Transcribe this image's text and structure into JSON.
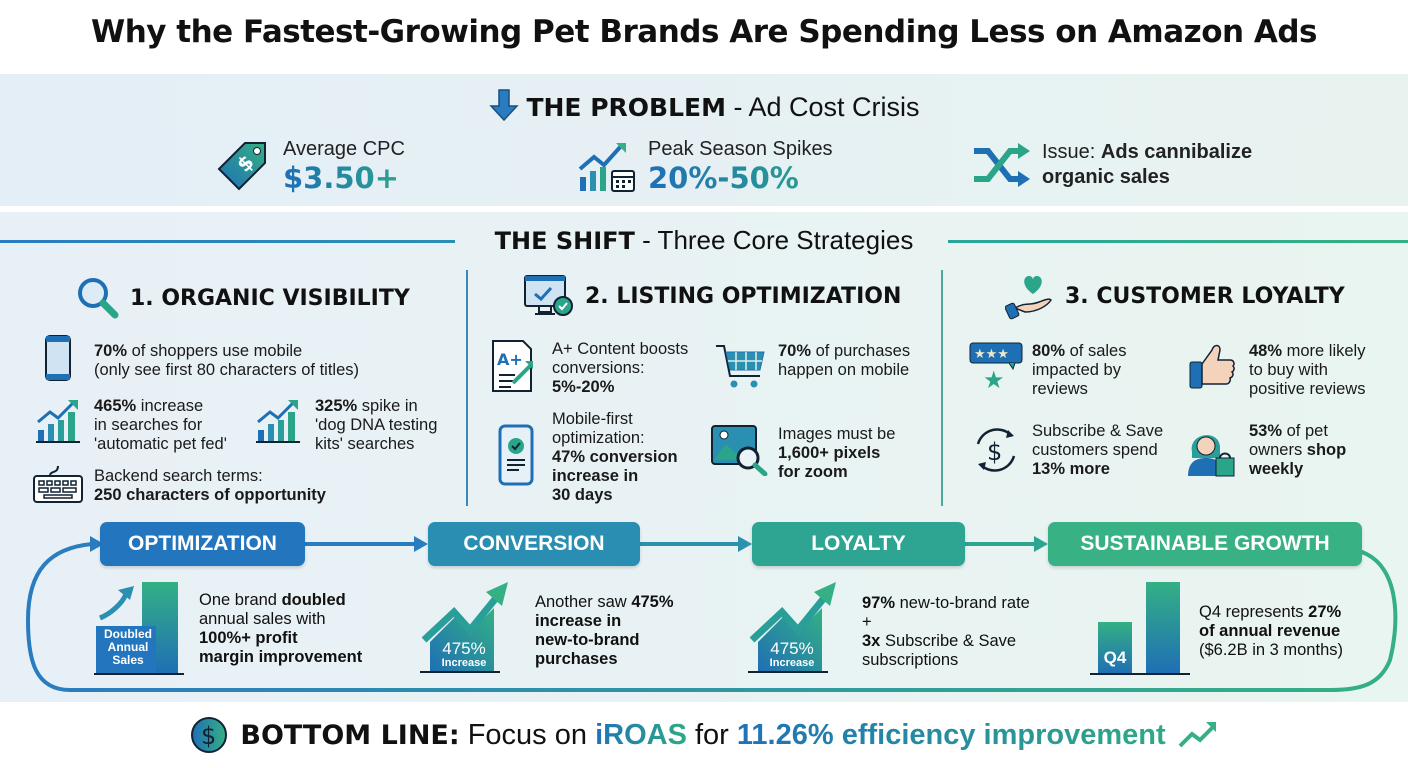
{
  "title": "Why the Fastest-Growing Pet Brands Are Spending Less on Amazon Ads",
  "problem": {
    "heading_bold": "THE PROBLEM",
    "heading_rest": " - Ad Cost Crisis",
    "stats": [
      {
        "label": "Average CPC",
        "value": "$3.50+",
        "icon": "price-tag-icon"
      },
      {
        "label": "Peak Season Spikes",
        "value": "20%-50%",
        "icon": "chart-calendar-icon"
      },
      {
        "label_prefix": "Issue: ",
        "label_bold": "Ads cannibalize",
        "label_bold2": "organic sales",
        "icon": "shuffle-arrows-icon"
      }
    ]
  },
  "shift": {
    "heading_bold": "THE SHIFT",
    "heading_rest": " - Three Core Strategies",
    "columns": [
      {
        "title": "1. ORGANIC VISIBILITY",
        "items": [
          [
            {
              "t": "70%",
              "b": true
            },
            {
              "t": " of shoppers use mobile"
            },
            {
              "br": true
            },
            {
              "t": "(only see first 80 characters of titles)"
            }
          ],
          [
            {
              "t": "465%",
              "b": true
            },
            {
              "t": " increase"
            },
            {
              "br": true
            },
            {
              "t": "in searches for"
            },
            {
              "br": true
            },
            {
              "t": "'automatic pet fed'"
            }
          ],
          [
            {
              "t": "325%",
              "b": true
            },
            {
              "t": " spike in"
            },
            {
              "br": true
            },
            {
              "t": "'dog DNA testing"
            },
            {
              "br": true
            },
            {
              "t": "kits' searches"
            }
          ],
          [
            {
              "t": "Backend search terms:"
            },
            {
              "br": true
            },
            {
              "t": "250 characters of opportunity",
              "b": true
            }
          ]
        ]
      },
      {
        "title": "2. LISTING OPTIMIZATION",
        "items": [
          [
            {
              "t": "A+ Content boosts"
            },
            {
              "br": true
            },
            {
              "t": "conversions:"
            },
            {
              "br": true
            },
            {
              "t": "5%-20%",
              "b": true
            }
          ],
          [
            {
              "t": "70%",
              "b": true
            },
            {
              "t": " of purchases"
            },
            {
              "br": true
            },
            {
              "t": "happen on mobile"
            }
          ],
          [
            {
              "t": "Mobile-first"
            },
            {
              "br": true
            },
            {
              "t": "optimization:"
            },
            {
              "br": true
            },
            {
              "t": "47% conversion",
              "b": true
            },
            {
              "br": true
            },
            {
              "t": "increase in",
              "b": true
            },
            {
              "br": true
            },
            {
              "t": "30 days",
              "b": true
            }
          ],
          [
            {
              "t": "Images must be"
            },
            {
              "br": true
            },
            {
              "t": "1,600+ pixels",
              "b": true
            },
            {
              "br": true
            },
            {
              "t": "for zoom",
              "b": true
            }
          ]
        ]
      },
      {
        "title": "3. CUSTOMER LOYALTY",
        "items": [
          [
            {
              "t": "80%",
              "b": true
            },
            {
              "t": " of sales"
            },
            {
              "br": true
            },
            {
              "t": "impacted by"
            },
            {
              "br": true
            },
            {
              "t": "reviews"
            }
          ],
          [
            {
              "t": "48%",
              "b": true
            },
            {
              "t": " more likely"
            },
            {
              "br": true
            },
            {
              "t": "to buy with"
            },
            {
              "br": true
            },
            {
              "t": "positive reviews"
            }
          ],
          [
            {
              "t": "Subscribe & Save"
            },
            {
              "br": true
            },
            {
              "t": "customers spend"
            },
            {
              "br": true
            },
            {
              "t": "13% more",
              "b": true
            }
          ],
          [
            {
              "t": "53%",
              "b": true
            },
            {
              "t": " of pet"
            },
            {
              "br": true
            },
            {
              "t": "owners "
            },
            {
              "t": "shop",
              "b": true
            },
            {
              "br": true
            },
            {
              "t": "weekly",
              "b": true
            }
          ]
        ]
      }
    ]
  },
  "flow": {
    "steps": [
      "OPTIMIZATION",
      "CONVERSION",
      "LOYALTY",
      "SUSTAINABLE GROWTH"
    ],
    "cases": [
      {
        "badge": [
          "Doubled",
          "Annual",
          "Sales"
        ],
        "text": [
          {
            "t": "One brand "
          },
          {
            "t": "doubled",
            "b": true
          },
          {
            "br": true
          },
          {
            "t": "annual sales with"
          },
          {
            "br": true
          },
          {
            "t": "100%+ profit",
            "b": true
          },
          {
            "br": true
          },
          {
            "t": "margin improvement",
            "b": true
          }
        ]
      },
      {
        "badge": [
          "475%",
          "Increase"
        ],
        "text": [
          {
            "t": "Another saw "
          },
          {
            "t": "475%",
            "b": true
          },
          {
            "br": true
          },
          {
            "t": "increase in",
            "b": true
          },
          {
            "br": true
          },
          {
            "t": "new-to-brand",
            "b": true
          },
          {
            "br": true
          },
          {
            "t": "purchases",
            "b": true
          }
        ]
      },
      {
        "badge": [
          "475%",
          "Increase"
        ],
        "text": [
          {
            "t": "97%",
            "b": true
          },
          {
            "t": " new-to-brand rate"
          },
          {
            "br": true
          },
          {
            "t": "+"
          },
          {
            "br": true
          },
          {
            "t": "3x",
            "b": true
          },
          {
            "t": " Subscribe & Save"
          },
          {
            "br": true
          },
          {
            "t": "subscriptions"
          }
        ]
      },
      {
        "badge": [
          "Q4"
        ],
        "text": [
          {
            "t": "Q4 represents "
          },
          {
            "t": "27%",
            "b": true
          },
          {
            "br": true
          },
          {
            "t": "of annual revenue",
            "b": true
          },
          {
            "br": true
          },
          {
            "t": "($6.2B in 3 months)"
          }
        ]
      }
    ]
  },
  "bottom_line": {
    "label": "BOTTOM LINE:",
    "text1": " Focus on ",
    "highlight1": "iROAS",
    "text2": " for ",
    "highlight2": "11.26% efficiency improvement"
  },
  "colors": {
    "blue": "#1f6fb5",
    "teal": "#2a9a9a",
    "green": "#34b084",
    "dark": "#111111"
  }
}
